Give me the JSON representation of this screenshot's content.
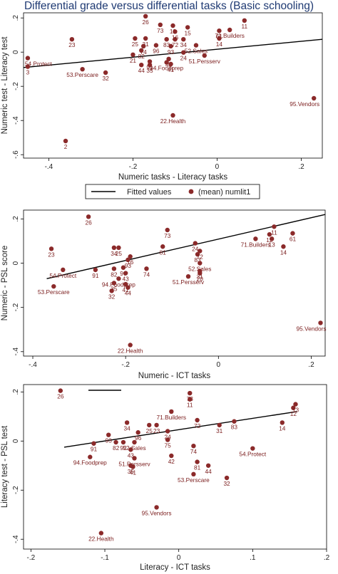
{
  "title": "Differential grade versus differential tasks (Basic schooling)",
  "colors": {
    "point": "#8b2a2a",
    "fit": "#000000",
    "title": "#1f3a73"
  },
  "legend": {
    "fitted": "Fitted values",
    "points": "(mean) numlit1"
  },
  "chart_data": [
    {
      "type": "scatter",
      "xlabel": "Numeric tasks - Literacy tasks",
      "ylabel": "Numeric test - Literacy test",
      "xlim": [
        -0.46,
        0.25
      ],
      "ylim": [
        -0.62,
        0.23
      ],
      "xticks": [
        "-.4",
        "-.2",
        "0",
        ".2"
      ],
      "xtick_values": [
        -0.4,
        -0.2,
        0,
        0.2
      ],
      "yticks": [
        ".2",
        "0",
        "-.2",
        "-.4",
        "-.6"
      ],
      "ytick_values": [
        0.2,
        0,
        -0.2,
        -0.4,
        -0.6
      ],
      "fit": [
        [
          -0.46,
          -0.09
        ],
        [
          0.25,
          0.075
        ]
      ],
      "points": [
        {
          "label": "54.Protect",
          "x": -0.45,
          "y": -0.035
        },
        {
          "label": "3",
          "x": -0.45,
          "y": -0.085
        },
        {
          "label": "23",
          "x": -0.345,
          "y": 0.075
        },
        {
          "label": "53.Perscare",
          "x": -0.32,
          "y": -0.1
        },
        {
          "label": "32",
          "x": -0.265,
          "y": -0.12
        },
        {
          "label": "2",
          "x": -0.36,
          "y": -0.52
        },
        {
          "label": "26",
          "x": -0.17,
          "y": 0.21
        },
        {
          "label": "73",
          "x": -0.135,
          "y": 0.16
        },
        {
          "label": "12",
          "x": -0.105,
          "y": 0.155
        },
        {
          "label": "11",
          "x": 0.065,
          "y": 0.185
        },
        {
          "label": "25",
          "x": -0.195,
          "y": 0.08
        },
        {
          "label": "31",
          "x": -0.17,
          "y": 0.08
        },
        {
          "label": "83",
          "x": -0.12,
          "y": 0.075
        },
        {
          "label": "72",
          "x": -0.1,
          "y": 0.075
        },
        {
          "label": "34",
          "x": -0.08,
          "y": 0.075
        },
        {
          "label": "61",
          "x": 0.005,
          "y": 0.125
        },
        {
          "label": "71.Builders",
          "x": 0.03,
          "y": 0.13
        },
        {
          "label": "15",
          "x": -0.07,
          "y": 0.145
        },
        {
          "label": "16",
          "x": -0.1,
          "y": 0.12
        },
        {
          "label": "14",
          "x": 0.005,
          "y": 0.08
        },
        {
          "label": "74",
          "x": -0.175,
          "y": 0.035
        },
        {
          "label": "96",
          "x": -0.145,
          "y": 0.04
        },
        {
          "label": "93",
          "x": -0.11,
          "y": 0.035
        },
        {
          "label": "52.Sales",
          "x": -0.05,
          "y": 0.04
        },
        {
          "label": "24",
          "x": -0.08,
          "y": -0.002
        },
        {
          "label": "21",
          "x": -0.2,
          "y": -0.015
        },
        {
          "label": "82",
          "x": -0.18,
          "y": 0.01
        },
        {
          "label": "51.Persserv",
          "x": -0.03,
          "y": -0.02
        },
        {
          "label": "43",
          "x": -0.115,
          "y": -0.04
        },
        {
          "label": "91",
          "x": -0.16,
          "y": -0.055
        },
        {
          "label": "94.Foodprep",
          "x": -0.12,
          "y": -0.06
        },
        {
          "label": "44",
          "x": -0.18,
          "y": -0.075
        },
        {
          "label": "35",
          "x": -0.16,
          "y": -0.075
        },
        {
          "label": "41",
          "x": -0.11,
          "y": -0.07
        },
        {
          "label": "22.Health",
          "x": -0.105,
          "y": -0.37
        },
        {
          "label": "95.Vendors",
          "x": 0.23,
          "y": -0.27
        }
      ]
    },
    {
      "type": "scatter",
      "xlabel": "Numeric - ICT tasks",
      "ylabel": "Numeric - PSL score",
      "xlim": [
        -0.42,
        0.23
      ],
      "ylim": [
        -0.42,
        0.24
      ],
      "xticks": [
        "-.4",
        "-.2",
        "0",
        ".2"
      ],
      "xtick_values": [
        -0.4,
        -0.2,
        0,
        0.2
      ],
      "yticks": [
        ".2",
        "0",
        "-.2",
        "-.4"
      ],
      "ytick_values": [
        0.2,
        0,
        -0.2,
        -0.4
      ],
      "fit": [
        [
          -0.37,
          -0.07
        ],
        [
          0.23,
          0.22
        ]
      ],
      "points": [
        {
          "label": "26",
          "x": -0.28,
          "y": 0.21
        },
        {
          "label": "23",
          "x": -0.36,
          "y": 0.065
        },
        {
          "label": "54.Protect",
          "x": -0.335,
          "y": -0.03
        },
        {
          "label": "53.Perscare",
          "x": -0.355,
          "y": -0.105
        },
        {
          "label": "91",
          "x": -0.265,
          "y": -0.03
        },
        {
          "label": "34",
          "x": -0.225,
          "y": 0.07
        },
        {
          "label": "25",
          "x": -0.215,
          "y": 0.07
        },
        {
          "label": "16",
          "x": -0.19,
          "y": 0.03
        },
        {
          "label": "93",
          "x": -0.195,
          "y": 0.015
        },
        {
          "label": "82",
          "x": -0.225,
          "y": -0.025
        },
        {
          "label": "96",
          "x": -0.205,
          "y": -0.02
        },
        {
          "label": "43",
          "x": -0.2,
          "y": -0.045
        },
        {
          "label": "74",
          "x": -0.155,
          "y": -0.025
        },
        {
          "label": "94.Foodprep",
          "x": -0.215,
          "y": -0.07
        },
        {
          "label": "35",
          "x": -0.225,
          "y": -0.09
        },
        {
          "label": "41",
          "x": -0.2,
          "y": -0.095
        },
        {
          "label": "44",
          "x": -0.195,
          "y": -0.11
        },
        {
          "label": "32",
          "x": -0.23,
          "y": -0.125
        },
        {
          "label": "73",
          "x": -0.11,
          "y": 0.15
        },
        {
          "label": "81",
          "x": -0.12,
          "y": 0.075
        },
        {
          "label": "24",
          "x": -0.05,
          "y": 0.09
        },
        {
          "label": "83",
          "x": -0.045,
          "y": 0.04
        },
        {
          "label": "72",
          "x": -0.04,
          "y": 0.055
        },
        {
          "label": "52.Sales",
          "x": -0.04,
          "y": 0.0
        },
        {
          "label": "51.Persserv",
          "x": -0.065,
          "y": -0.06
        },
        {
          "label": "31",
          "x": -0.04,
          "y": -0.035
        },
        {
          "label": "20",
          "x": -0.04,
          "y": -0.045
        },
        {
          "label": "71.Builders",
          "x": 0.08,
          "y": 0.11
        },
        {
          "label": "11",
          "x": 0.12,
          "y": 0.165
        },
        {
          "label": "12",
          "x": 0.11,
          "y": 0.13
        },
        {
          "label": "13",
          "x": 0.115,
          "y": 0.11
        },
        {
          "label": "61",
          "x": 0.16,
          "y": 0.135
        },
        {
          "label": "14",
          "x": 0.14,
          "y": 0.075
        },
        {
          "label": "22.Health",
          "x": -0.19,
          "y": -0.37
        },
        {
          "label": "95.Vendors",
          "x": 0.22,
          "y": -0.27
        }
      ]
    },
    {
      "type": "scatter",
      "xlabel": "Literacy - ICT tasks",
      "ylabel": "Literacy test - PSL test",
      "xlim": [
        -0.21,
        0.2
      ],
      "ylim": [
        -0.44,
        0.23
      ],
      "xticks": [
        "-.2",
        "-.1",
        "0",
        ".1",
        ".2"
      ],
      "xtick_values": [
        -0.2,
        -0.1,
        0,
        0.1,
        0.2
      ],
      "yticks": [
        ".2",
        "0",
        "-.2",
        "-.4"
      ],
      "ytick_values": [
        0.2,
        0,
        -0.2,
        -0.4
      ],
      "fit": [
        [
          -0.155,
          -0.025
        ],
        [
          0.16,
          0.12
        ]
      ],
      "points": [
        {
          "label": "26",
          "x": -0.16,
          "y": 0.205
        },
        {
          "label": "73",
          "x": 0.015,
          "y": 0.195
        },
        {
          "label": "11",
          "x": 0.015,
          "y": 0.17
        },
        {
          "label": "71.Builders",
          "x": -0.01,
          "y": 0.12
        },
        {
          "label": "12",
          "x": 0.155,
          "y": 0.135
        },
        {
          "label": "13",
          "x": 0.158,
          "y": 0.15
        },
        {
          "label": "72",
          "x": 0.025,
          "y": 0.085
        },
        {
          "label": "31",
          "x": 0.055,
          "y": 0.065
        },
        {
          "label": "83",
          "x": 0.075,
          "y": 0.08
        },
        {
          "label": "14",
          "x": 0.14,
          "y": 0.075
        },
        {
          "label": "34",
          "x": -0.07,
          "y": 0.075
        },
        {
          "label": "25",
          "x": -0.04,
          "y": 0.065
        },
        {
          "label": "23",
          "x": -0.03,
          "y": 0.065
        },
        {
          "label": "24",
          "x": -0.015,
          "y": 0.04
        },
        {
          "label": "96",
          "x": -0.055,
          "y": 0.035
        },
        {
          "label": "93",
          "x": -0.095,
          "y": 0.025
        },
        {
          "label": "75",
          "x": -0.015,
          "y": 0.005
        },
        {
          "label": "91",
          "x": -0.115,
          "y": -0.01
        },
        {
          "label": "82",
          "x": -0.085,
          "y": -0.005
        },
        {
          "label": "92",
          "x": -0.075,
          "y": -0.005
        },
        {
          "label": "52.Sales",
          "x": -0.06,
          "y": -0.005
        },
        {
          "label": "43",
          "x": -0.065,
          "y": -0.035
        },
        {
          "label": "94.Foodprep",
          "x": -0.12,
          "y": -0.065
        },
        {
          "label": "51.Persserv",
          "x": -0.06,
          "y": -0.07
        },
        {
          "label": "35",
          "x": -0.065,
          "y": -0.1
        },
        {
          "label": "41",
          "x": -0.062,
          "y": -0.105
        },
        {
          "label": "42",
          "x": -0.01,
          "y": -0.06
        },
        {
          "label": "81",
          "x": 0.025,
          "y": -0.085
        },
        {
          "label": "74",
          "x": 0.02,
          "y": -0.02
        },
        {
          "label": "53.Perscare",
          "x": 0.02,
          "y": -0.135
        },
        {
          "label": "44",
          "x": 0.04,
          "y": -0.1
        },
        {
          "label": "32",
          "x": 0.065,
          "y": -0.15
        },
        {
          "label": "54.Protect",
          "x": 0.1,
          "y": -0.03
        },
        {
          "label": "95.Vendors",
          "x": -0.03,
          "y": -0.27
        },
        {
          "label": "22.Health",
          "x": -0.105,
          "y": -0.375
        }
      ]
    }
  ]
}
